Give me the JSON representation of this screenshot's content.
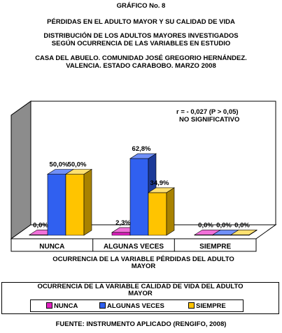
{
  "header": {
    "figure_label": "GRÁFICO No. 8",
    "title": "PÉRDIDAS EN EL ADULTO MAYOR Y SU CALIDAD DE VIDA",
    "subtitle_line1": "DISTRIBUCIÓN DE LOS ADULTOS MAYORES INVESTIGADOS",
    "subtitle_line2": "SEGÚN OCURRENCIA DE LAS VARIABLES EN ESTUDIO",
    "place_line1": "CASA DEL ABUELO. COMUNIDAD JOSÉ GREGORIO HERNÁNDEZ.",
    "place_line2": "VALENCIA. ESTADO CARABOBO. MARZO 2008"
  },
  "chart_data": {
    "type": "bar",
    "categories": [
      "NUNCA",
      "ALGUNAS VECES",
      "SIEMPRE"
    ],
    "series": [
      {
        "name": "NUNCA",
        "values": [
          0.0,
          2.3,
          0.0
        ],
        "labels": [
          "0,0%",
          "2,3%",
          "0,0%"
        ]
      },
      {
        "name": "ALGUNAS VECES",
        "values": [
          50.0,
          62.8,
          0.0
        ],
        "labels": [
          "50,0%",
          "62,8%",
          "0,0%"
        ]
      },
      {
        "name": "SIEMPRE",
        "values": [
          50.0,
          34.9,
          0.0
        ],
        "labels": [
          "50,0%",
          "34,9%",
          "0,0%"
        ]
      }
    ],
    "xlabel_line1": "OCURRENCIA DE LA VARIABLE PÉRDIDAS DEL ADULTO",
    "xlabel_line2": "MAYOR",
    "ylim": [
      0,
      100
    ],
    "grid": false,
    "annotation_line1": "r = - 0,027 (P > 0,05)",
    "annotation_line2": "NO SIGNIFICATIVO",
    "legend_title_line1": "OCURRENCIA DE LA VARIABLE CALIDAD DE VIDA DEL ADULTO",
    "legend_title_line2": "MAYOR",
    "legend_position": "bottom"
  },
  "colors": {
    "nunca": "#e020c0",
    "algunas_veces": "#3060f0",
    "siempre": "#ffc400"
  },
  "footer": "FUENTE: INSTRUMENTO APLICADO (RENGIFO, 2008)"
}
